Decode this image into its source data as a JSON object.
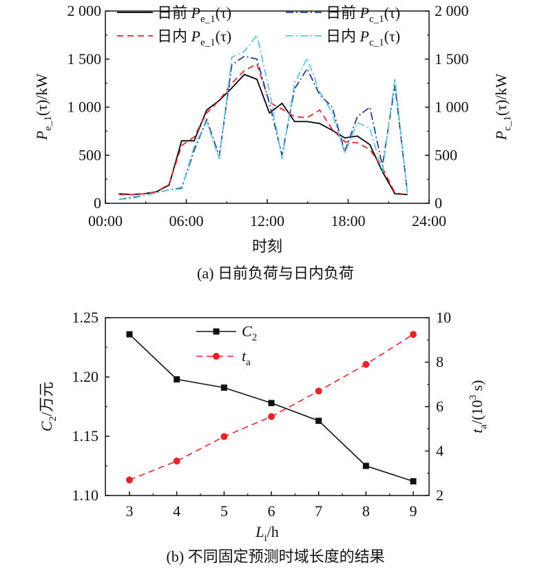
{
  "chart_data": [
    {
      "type": "line",
      "caption": "(a) 日前负荷与日内负荷",
      "xlabel": "时刻",
      "ylabel_left": "Pe_1(τ)/kW",
      "ylabel_right": "Pc_1(τ)/kW",
      "x_ticks": [
        "00:00",
        "06:00",
        "12:00",
        "18:00",
        "24:00"
      ],
      "y_ticks_left": [
        "0",
        "500",
        "1 000",
        "1 500",
        "2 000"
      ],
      "y_ticks_right": [
        "0",
        "500",
        "1 000",
        "1 500",
        "2 000"
      ],
      "xlim": [
        0,
        24
      ],
      "ylim": [
        0,
        2000
      ],
      "x": [
        0,
        1,
        2,
        3,
        4,
        5,
        6,
        7,
        8,
        9,
        10,
        11,
        12,
        13,
        14,
        15,
        16,
        17,
        18,
        19,
        20,
        21,
        22,
        23
      ],
      "series": [
        {
          "name": "日前 Pe_1(τ)",
          "color": "#000000",
          "dash": "solid",
          "values": [
            100,
            90,
            100,
            120,
            190,
            650,
            650,
            970,
            1070,
            1200,
            1340,
            1290,
            940,
            1040,
            850,
            850,
            830,
            760,
            680,
            700,
            610,
            330,
            100,
            90
          ]
        },
        {
          "name": "日内 Pe_1(τ)",
          "color": "#e8232a",
          "dash": "dashed",
          "values": [
            90,
            90,
            100,
            120,
            200,
            600,
            690,
            940,
            1070,
            1250,
            1380,
            1450,
            1050,
            980,
            900,
            890,
            970,
            770,
            640,
            630,
            560,
            370,
            110,
            90
          ]
        },
        {
          "name": "日前 Pc_1(τ)",
          "color": "#1f3e8f",
          "dash": "dashdot",
          "values": [
            40,
            60,
            80,
            110,
            140,
            160,
            550,
            870,
            490,
            1440,
            1530,
            1500,
            1040,
            500,
            1190,
            1400,
            1130,
            1000,
            540,
            900,
            1000,
            390,
            1230,
            100
          ]
        },
        {
          "name": "日内 Pc_1(τ)",
          "color": "#5ec4dc",
          "dash": "dashdot",
          "values": [
            40,
            50,
            80,
            110,
            140,
            150,
            590,
            850,
            460,
            1520,
            1580,
            1750,
            1170,
            460,
            1250,
            1510,
            1160,
            940,
            520,
            840,
            780,
            330,
            1300,
            90
          ]
        }
      ],
      "legend": {
        "items": [
          {
            "prefix": "日前 ",
            "sym": "P",
            "sub": "e_1",
            "suffix": "(τ)",
            "color": "#000000",
            "dash": "solid"
          },
          {
            "prefix": "日前 ",
            "sym": "P",
            "sub": "c_1",
            "suffix": "(τ)",
            "color": "#1f3e8f",
            "dash": "dashdot"
          },
          {
            "prefix": "日内 ",
            "sym": "P",
            "sub": "e_1",
            "suffix": "(τ)",
            "color": "#e8232a",
            "dash": "dashed"
          },
          {
            "prefix": "日内 ",
            "sym": "P",
            "sub": "c_1",
            "suffix": "(τ)",
            "color": "#5ec4dc",
            "dash": "dashdot"
          }
        ]
      }
    },
    {
      "type": "line",
      "caption": "(b) 不同固定预测时域长度的结果",
      "xlabel": "Li/h",
      "ylabel_left": "C2/万元",
      "ylabel_right": "ta/(10³ s)",
      "x": [
        3,
        4,
        5,
        6,
        7,
        8,
        9
      ],
      "x_ticks": [
        "3",
        "4",
        "5",
        "6",
        "7",
        "8",
        "9"
      ],
      "y_ticks_left": [
        "1.10",
        "1.15",
        "1.20",
        "1.25"
      ],
      "y_ticks_right": [
        "2",
        "4",
        "6",
        "8",
        "10"
      ],
      "ylim_left": [
        1.1,
        1.25
      ],
      "ylim_right": [
        2,
        10
      ],
      "series": [
        {
          "name": "C2",
          "axis": "left",
          "color": "#111111",
          "dash": "solid",
          "marker": "square",
          "values": [
            1.236,
            1.198,
            1.191,
            1.178,
            1.163,
            1.125,
            1.112
          ]
        },
        {
          "name": "ta",
          "axis": "right",
          "color": "#e8232a",
          "dash": "dashed",
          "marker": "circle",
          "values": [
            2.7,
            3.55,
            4.65,
            5.55,
            6.7,
            7.9,
            9.25
          ]
        }
      ],
      "legend": {
        "items": [
          {
            "sym": "C",
            "sub": "2",
            "color": "#111111",
            "dash": "solid",
            "marker": "square"
          },
          {
            "sym": "t",
            "sub": "a",
            "color": "#e8232a",
            "dash": "dashed",
            "marker": "circle"
          }
        ]
      }
    }
  ]
}
